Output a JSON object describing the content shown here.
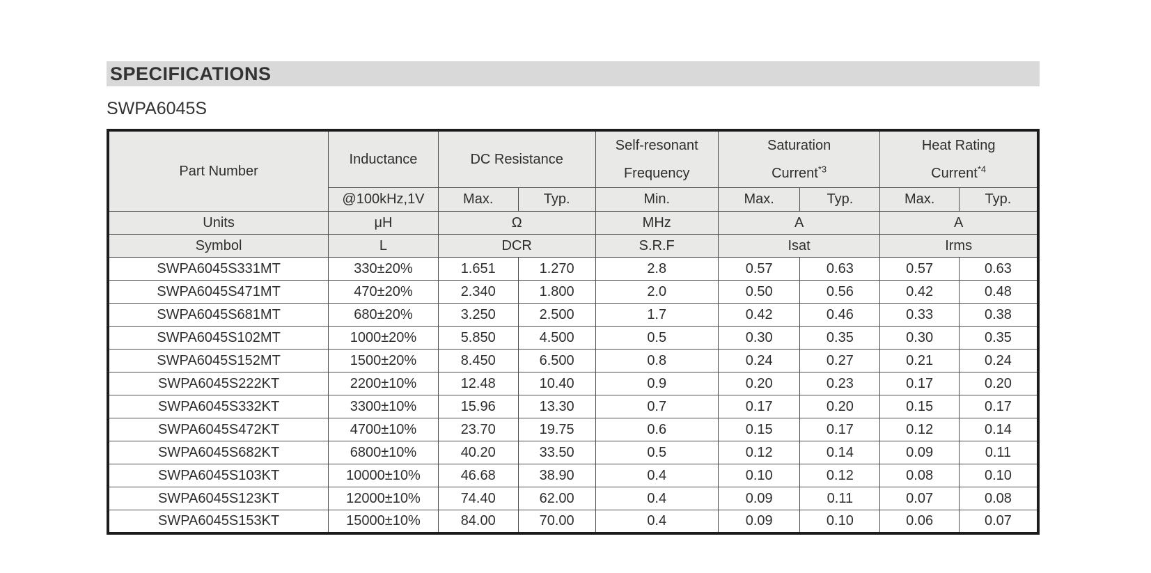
{
  "page": {
    "section_title": "SPECIFICATIONS",
    "series_name": "SWPA6045S"
  },
  "colors": {
    "section_bar_bg": "#d9d9d9",
    "header_cell_bg": "#e9e9e7",
    "inner_border": "#4d4d4d",
    "outer_border": "#1c1c1c",
    "text": "#2e2e2e"
  },
  "table": {
    "header": {
      "part_number": "Part Number",
      "inductance": "Inductance",
      "dc_resistance": "DC Resistance",
      "self_resonant_line1": "Self-resonant",
      "self_resonant_line2": "Frequency",
      "saturation_line1": "Saturation",
      "saturation_line2": "Current",
      "saturation_note": "*3",
      "heat_line1": "Heat Rating",
      "heat_line2": "Current",
      "heat_note": "*4",
      "inductance_condition": "@100kHz,1V",
      "max": "Max.",
      "typ": "Typ.",
      "min": "Min."
    },
    "units_row": {
      "label": "Units",
      "inductance": "μH",
      "dcr": "Ω",
      "srf": "MHz",
      "isat": "A",
      "irms": "A"
    },
    "symbol_row": {
      "label": "Symbol",
      "inductance": "L",
      "dcr": "DCR",
      "srf": "S.R.F",
      "isat": "Isat",
      "irms": "Irms"
    },
    "rows": [
      [
        "SWPA6045S331MT",
        "330±20%",
        "1.651",
        "1.270",
        "2.8",
        "0.57",
        "0.63",
        "0.57",
        "0.63"
      ],
      [
        "SWPA6045S471MT",
        "470±20%",
        "2.340",
        "1.800",
        "2.0",
        "0.50",
        "0.56",
        "0.42",
        "0.48"
      ],
      [
        "SWPA6045S681MT",
        "680±20%",
        "3.250",
        "2.500",
        "1.7",
        "0.42",
        "0.46",
        "0.33",
        "0.38"
      ],
      [
        "SWPA6045S102MT",
        "1000±20%",
        "5.850",
        "4.500",
        "0.5",
        "0.30",
        "0.35",
        "0.30",
        "0.35"
      ],
      [
        "SWPA6045S152MT",
        "1500±20%",
        "8.450",
        "6.500",
        "0.8",
        "0.24",
        "0.27",
        "0.21",
        "0.24"
      ],
      [
        "SWPA6045S222KT",
        "2200±10%",
        "12.48",
        "10.40",
        "0.9",
        "0.20",
        "0.23",
        "0.17",
        "0.20"
      ],
      [
        "SWPA6045S332KT",
        "3300±10%",
        "15.96",
        "13.30",
        "0.7",
        "0.17",
        "0.20",
        "0.15",
        "0.17"
      ],
      [
        "SWPA6045S472KT",
        "4700±10%",
        "23.70",
        "19.75",
        "0.6",
        "0.15",
        "0.17",
        "0.12",
        "0.14"
      ],
      [
        "SWPA6045S682KT",
        "6800±10%",
        "40.20",
        "33.50",
        "0.5",
        "0.12",
        "0.14",
        "0.09",
        "0.11"
      ],
      [
        "SWPA6045S103KT",
        "10000±10%",
        "46.68",
        "38.90",
        "0.4",
        "0.10",
        "0.12",
        "0.08",
        "0.10"
      ],
      [
        "SWPA6045S123KT",
        "12000±10%",
        "74.40",
        "62.00",
        "0.4",
        "0.09",
        "0.11",
        "0.07",
        "0.08"
      ],
      [
        "SWPA6045S153KT",
        "15000±10%",
        "84.00",
        "70.00",
        "0.4",
        "0.09",
        "0.10",
        "0.06",
        "0.07"
      ]
    ]
  }
}
